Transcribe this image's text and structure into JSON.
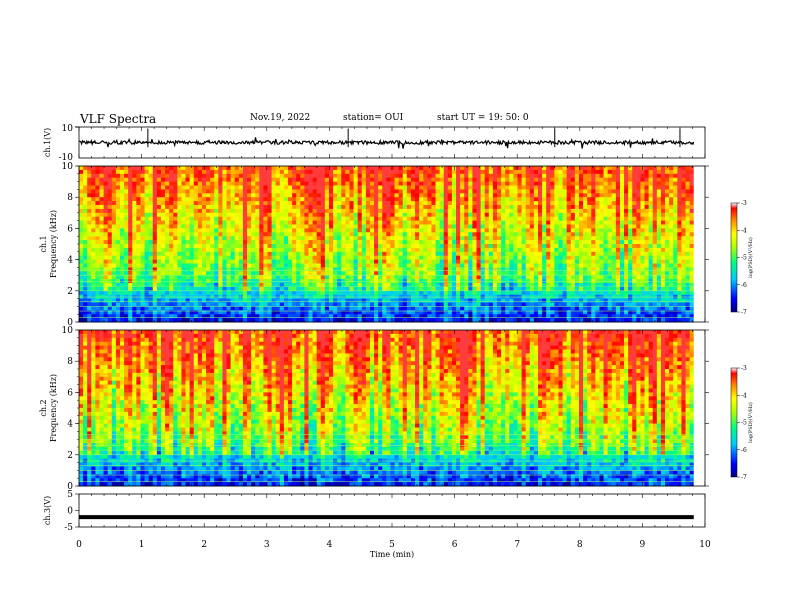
{
  "header": {
    "title": "VLF Spectra",
    "date": "Nov.19, 2022",
    "station": "station= OUI",
    "start": "start  UT =   19: 50: 0"
  },
  "chart_data": [
    {
      "type": "line",
      "panel": "ch1-waveform",
      "ylabel": "ch.1(V)",
      "ytick_labels": [
        "10",
        "-10"
      ],
      "ylim": [
        -10,
        10
      ],
      "xlim": [
        0,
        10
      ],
      "baseline": 0,
      "description_values": "noisy waveform around 0 V with spikes"
    },
    {
      "type": "heatmap",
      "panel": "ch1-spectrogram",
      "ylabel": "ch.1\nFrequency  (kHz)",
      "ylabel_lines": [
        "ch.1",
        "Frequency  (kHz)"
      ],
      "yticks": [
        0,
        2,
        4,
        6,
        8,
        10
      ],
      "ylim": [
        0,
        10
      ],
      "xlim": [
        0,
        10
      ],
      "colorbar": {
        "label": "log(PSD)(V²/Hz)",
        "ticks": [
          -3,
          -4,
          -5,
          -6,
          -7
        ],
        "range": [
          -7,
          -3
        ]
      }
    },
    {
      "type": "heatmap",
      "panel": "ch2-spectrogram",
      "ylabel_lines": [
        "ch.2",
        "Frequency  (kHz)"
      ],
      "yticks": [
        0,
        2,
        4,
        6,
        8,
        10
      ],
      "ylim": [
        0,
        10
      ],
      "xlim": [
        0,
        10
      ],
      "colorbar": {
        "label": "log(PSD)(V²/Hz)",
        "ticks": [
          -3,
          -4,
          -5,
          -6,
          -7
        ],
        "range": [
          -7,
          -3
        ]
      }
    },
    {
      "type": "line",
      "panel": "ch3-waveform",
      "ylabel": "ch.3(V)",
      "ytick_labels": [
        "5",
        "0",
        "-5"
      ],
      "ylim": [
        -5,
        5
      ],
      "xlim": [
        0,
        10
      ],
      "level": -2
    }
  ],
  "xaxis": {
    "label": "Time  (min)",
    "ticks": [
      "0",
      "1",
      "2",
      "3",
      "4",
      "5",
      "6",
      "7",
      "8",
      "9",
      "10"
    ]
  }
}
